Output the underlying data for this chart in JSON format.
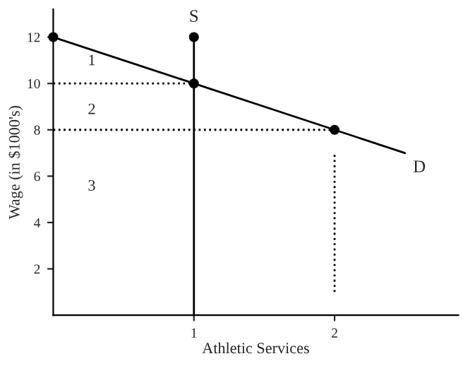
{
  "chart_data": {
    "type": "line",
    "xlabel": "Athletic Services",
    "ylabel": "Wage (in $1000's)",
    "xlim": [
      0,
      2.88
    ],
    "ylim": [
      0,
      13.2
    ],
    "xticks": [
      1,
      2
    ],
    "yticks": [
      2,
      4,
      6,
      8,
      10,
      12
    ],
    "grid": false,
    "legend": false,
    "series": [
      {
        "name": "D",
        "color": "#000000",
        "x": [
          0,
          1,
          2,
          2.5
        ],
        "values": [
          12,
          10,
          8,
          7
        ]
      },
      {
        "name": "S",
        "color": "#000000",
        "x": [
          1,
          1
        ],
        "values": [
          0,
          12
        ]
      },
      {
        "type": "line",
        "line_style": "dotted",
        "color": "#000000",
        "x": [
          0,
          1
        ],
        "values": [
          10,
          10
        ]
      },
      {
        "type": "line",
        "line_style": "dotted",
        "color": "#000000",
        "x": [
          0,
          2
        ],
        "values": [
          8,
          8
        ]
      },
      {
        "type": "line",
        "line_style": "dotted",
        "color": "#000000",
        "x": [
          2,
          2
        ],
        "values": [
          1,
          7
        ]
      },
      {
        "type": "scatter",
        "marker": "circle",
        "color": "#000000",
        "x": [
          0,
          1,
          1,
          2
        ],
        "values": [
          12,
          12,
          10,
          8
        ]
      }
    ],
    "annotations": [
      "1",
      "2",
      "3"
    ]
  }
}
